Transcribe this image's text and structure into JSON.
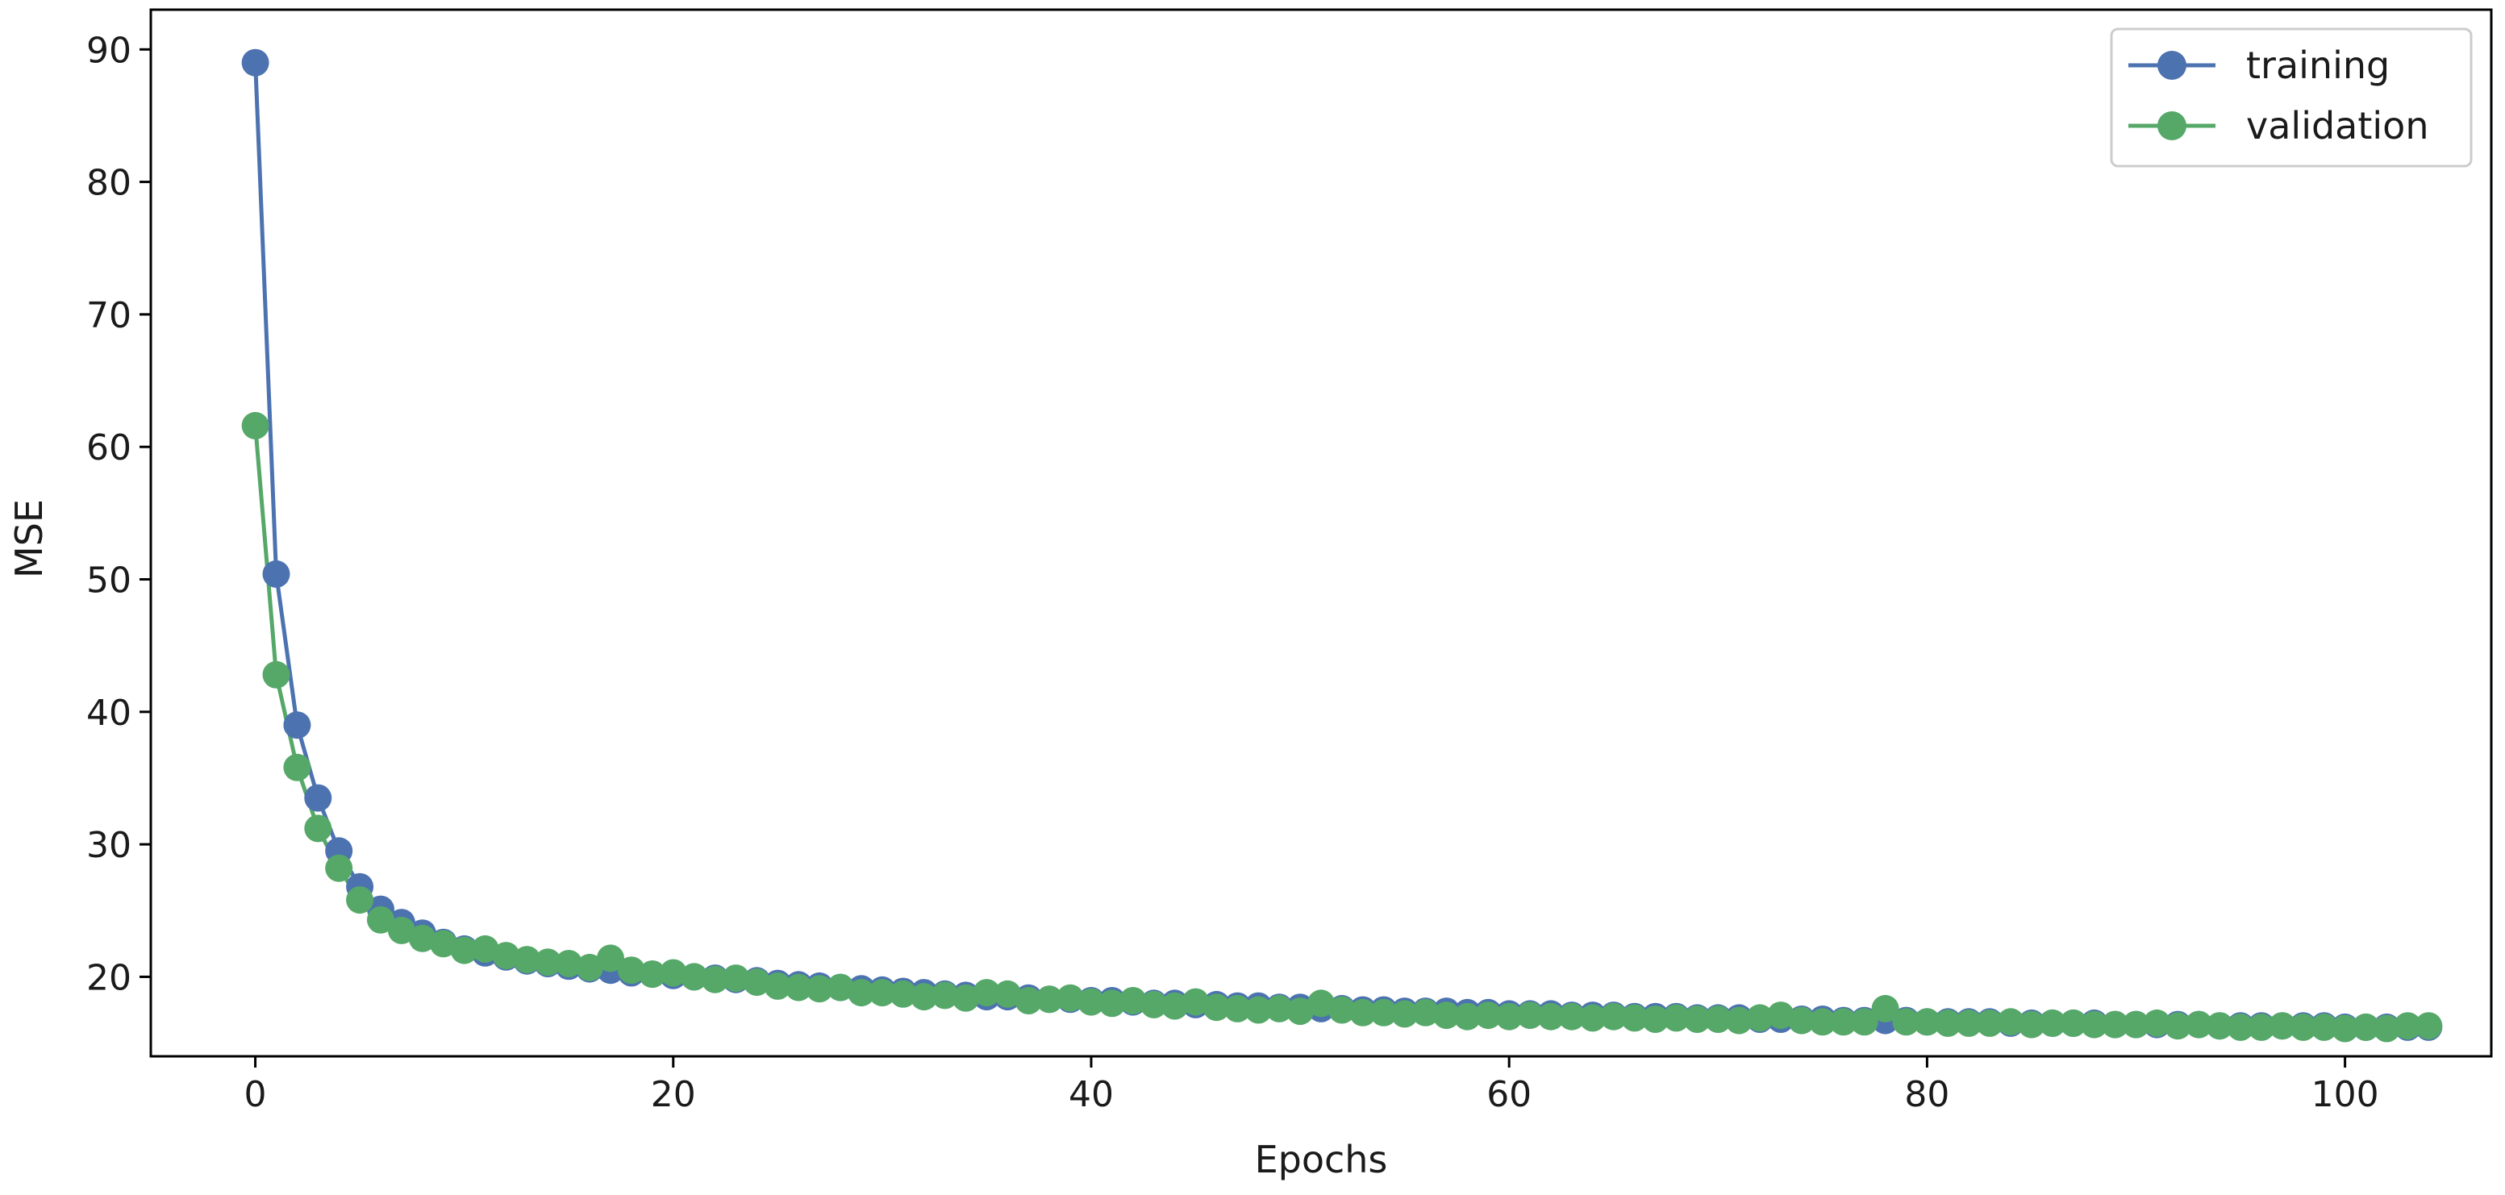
{
  "colors": {
    "training": "#4c72b0",
    "validation": "#55a868",
    "axes": "#000000"
  },
  "chart_data": {
    "type": "line",
    "title": "",
    "xlabel": "Epochs",
    "ylabel": "MSE",
    "xlim": [
      -5,
      107
    ],
    "ylim": [
      14,
      93
    ],
    "xticks": [
      0,
      20,
      40,
      60,
      80,
      100
    ],
    "yticks": [
      20,
      30,
      40,
      50,
      60,
      70,
      80,
      90
    ],
    "grid": false,
    "legend_position": "top-right",
    "x_range": [
      0,
      104
    ],
    "series": [
      {
        "name": "training",
        "values": [
          89.0,
          50.4,
          39.0,
          33.5,
          29.5,
          26.8,
          25.1,
          24.1,
          23.3,
          22.6,
          22.1,
          21.8,
          21.5,
          21.2,
          21.0,
          20.8,
          20.6,
          20.5,
          20.3,
          20.2,
          20.1,
          20.0,
          19.9,
          19.8,
          19.7,
          19.5,
          19.4,
          19.3,
          19.2,
          19.1,
          19.0,
          18.9,
          18.8,
          18.7,
          18.6,
          18.5,
          18.5,
          18.4,
          18.3,
          18.3,
          18.2,
          18.2,
          18.1,
          18.0,
          18.0,
          17.9,
          17.9,
          17.8,
          17.8,
          17.7,
          17.7,
          17.6,
          17.6,
          17.5,
          17.5,
          17.4,
          17.4,
          17.4,
          17.3,
          17.3,
          17.2,
          17.2,
          17.2,
          17.1,
          17.1,
          17.1,
          17.0,
          17.0,
          17.0,
          16.9,
          16.9,
          16.9,
          16.8,
          16.8,
          16.8,
          16.8,
          16.7,
          16.7,
          16.7,
          16.7,
          16.6,
          16.6,
          16.6,
          16.6,
          16.5,
          16.5,
          16.5,
          16.5,
          16.5,
          16.4,
          16.4,
          16.4,
          16.4,
          16.4,
          16.3,
          16.3,
          16.3,
          16.3,
          16.3,
          16.3,
          16.2,
          16.2,
          16.2,
          16.2,
          16.2
        ]
      },
      {
        "name": "validation",
        "values": [
          61.6,
          42.8,
          35.8,
          31.2,
          28.2,
          25.8,
          24.3,
          23.5,
          22.9,
          22.5,
          22.0,
          22.1,
          21.6,
          21.3,
          21.1,
          21.0,
          20.7,
          21.4,
          20.5,
          20.2,
          20.3,
          20.0,
          19.8,
          19.9,
          19.6,
          19.3,
          19.2,
          19.1,
          19.2,
          18.8,
          18.8,
          18.7,
          18.5,
          18.6,
          18.4,
          18.8,
          18.7,
          18.2,
          18.3,
          18.4,
          18.1,
          18.0,
          18.2,
          17.9,
          17.8,
          18.1,
          17.7,
          17.6,
          17.5,
          17.6,
          17.4,
          18.0,
          17.5,
          17.3,
          17.3,
          17.2,
          17.3,
          17.1,
          17.0,
          17.1,
          17.0,
          17.1,
          17.0,
          17.0,
          16.9,
          17.0,
          16.9,
          16.8,
          16.9,
          16.8,
          16.8,
          16.7,
          16.9,
          17.1,
          16.7,
          16.6,
          16.6,
          16.6,
          17.6,
          16.6,
          16.6,
          16.5,
          16.5,
          16.5,
          16.6,
          16.4,
          16.5,
          16.5,
          16.4,
          16.4,
          16.4,
          16.5,
          16.3,
          16.4,
          16.3,
          16.2,
          16.2,
          16.3,
          16.2,
          16.2,
          16.1,
          16.2,
          16.1,
          16.3,
          16.3
        ]
      }
    ]
  }
}
